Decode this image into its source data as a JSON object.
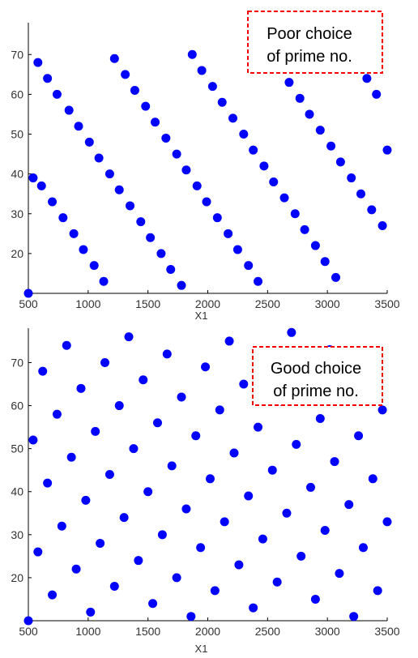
{
  "chart_data": [
    {
      "type": "scatter",
      "title": "",
      "xlabel": "X1",
      "ylabel": "",
      "xlim": [
        500,
        3500
      ],
      "ylim": [
        10,
        78
      ],
      "xticks": [
        "500",
        "1000",
        "1500",
        "2000",
        "2500",
        "3000",
        "3500"
      ],
      "yticks": [
        "20",
        "30",
        "40",
        "50",
        "60",
        "70"
      ],
      "grid": false,
      "annotation_lines": [
        "Poor choice",
        "of prime no."
      ],
      "annotation_color": "#ff0000",
      "marker_color": "#0000ff",
      "series": [
        {
          "x": [
            500,
            540,
            580,
            610,
            660,
            700,
            740,
            790,
            840,
            880,
            920,
            960,
            1010,
            1050,
            1090,
            1130,
            1180,
            1220,
            1260,
            1310,
            1350,
            1390,
            1440,
            1480,
            1520,
            1560,
            1610,
            1650,
            1690,
            1740,
            1780,
            1820,
            1870,
            1910,
            1950,
            1990,
            2040,
            2080,
            2120,
            2170,
            2210,
            2250,
            2300,
            2340,
            2380,
            2420,
            2470,
            2510,
            2550,
            2600,
            2640,
            2680,
            2730,
            2770,
            2810,
            2850,
            2900,
            2940,
            2980,
            3030,
            3070,
            3110,
            3160,
            3200,
            3240,
            3280,
            3330,
            3370,
            3410,
            3460,
            3500
          ],
          "y": [
            10,
            39,
            68,
            37,
            64,
            33,
            60,
            29,
            56,
            25,
            52,
            21,
            48,
            17,
            44,
            13,
            40,
            69,
            36,
            65,
            32,
            61,
            28,
            57,
            24,
            53,
            20,
            49,
            16,
            45,
            12,
            41,
            70,
            37,
            66,
            33,
            62,
            29,
            58,
            25,
            54,
            21,
            50,
            17,
            46,
            13,
            42,
            71,
            38,
            67,
            34,
            63,
            30,
            59,
            26,
            55,
            22,
            51,
            18,
            47,
            14,
            43,
            72,
            39,
            68,
            35,
            64,
            31,
            60,
            27,
            46
          ]
        }
      ]
    },
    {
      "type": "scatter",
      "title": "",
      "xlabel": "X1",
      "ylabel": "",
      "xlim": [
        500,
        3500
      ],
      "ylim": [
        10,
        78
      ],
      "xticks": [
        "500",
        "1000",
        "1500",
        "2000",
        "2500",
        "3000",
        "3500"
      ],
      "yticks": [
        "20",
        "30",
        "40",
        "50",
        "60",
        "70"
      ],
      "grid": false,
      "annotation_lines": [
        "Good choice",
        "of prime no."
      ],
      "annotation_color": "#ff0000",
      "marker_color": "#0000ff",
      "series": [
        {
          "x": [
            500,
            540,
            580,
            620,
            660,
            700,
            740,
            780,
            820,
            860,
            900,
            940,
            980,
            1020,
            1060,
            1100,
            1140,
            1180,
            1220,
            1260,
            1300,
            1340,
            1380,
            1420,
            1460,
            1500,
            1540,
            1580,
            1620,
            1660,
            1700,
            1740,
            1780,
            1820,
            1860,
            1900,
            1940,
            1980,
            2020,
            2060,
            2100,
            2140,
            2180,
            2220,
            2260,
            2300,
            2340,
            2380,
            2420,
            2460,
            2500,
            2540,
            2580,
            2620,
            2660,
            2700,
            2740,
            2780,
            2820,
            2860,
            2900,
            2940,
            2980,
            3020,
            3060,
            3100,
            3140,
            3180,
            3220,
            3260,
            3300,
            3340,
            3380,
            3420,
            3460,
            3500
          ],
          "y": [
            10,
            52,
            26,
            68,
            42,
            16,
            58,
            32,
            74,
            48,
            22,
            64,
            38,
            12,
            54,
            28,
            70,
            44,
            18,
            60,
            34,
            76,
            50,
            24,
            66,
            40,
            14,
            56,
            30,
            72,
            46,
            20,
            62,
            36,
            11,
            53,
            27,
            69,
            43,
            17,
            59,
            33,
            75,
            49,
            23,
            65,
            39,
            13,
            55,
            29,
            71,
            45,
            19,
            61,
            35,
            77,
            51,
            25,
            67,
            41,
            15,
            57,
            31,
            73,
            47,
            21,
            63,
            37,
            11,
            53,
            27,
            69,
            43,
            17,
            59,
            33
          ]
        }
      ]
    }
  ]
}
